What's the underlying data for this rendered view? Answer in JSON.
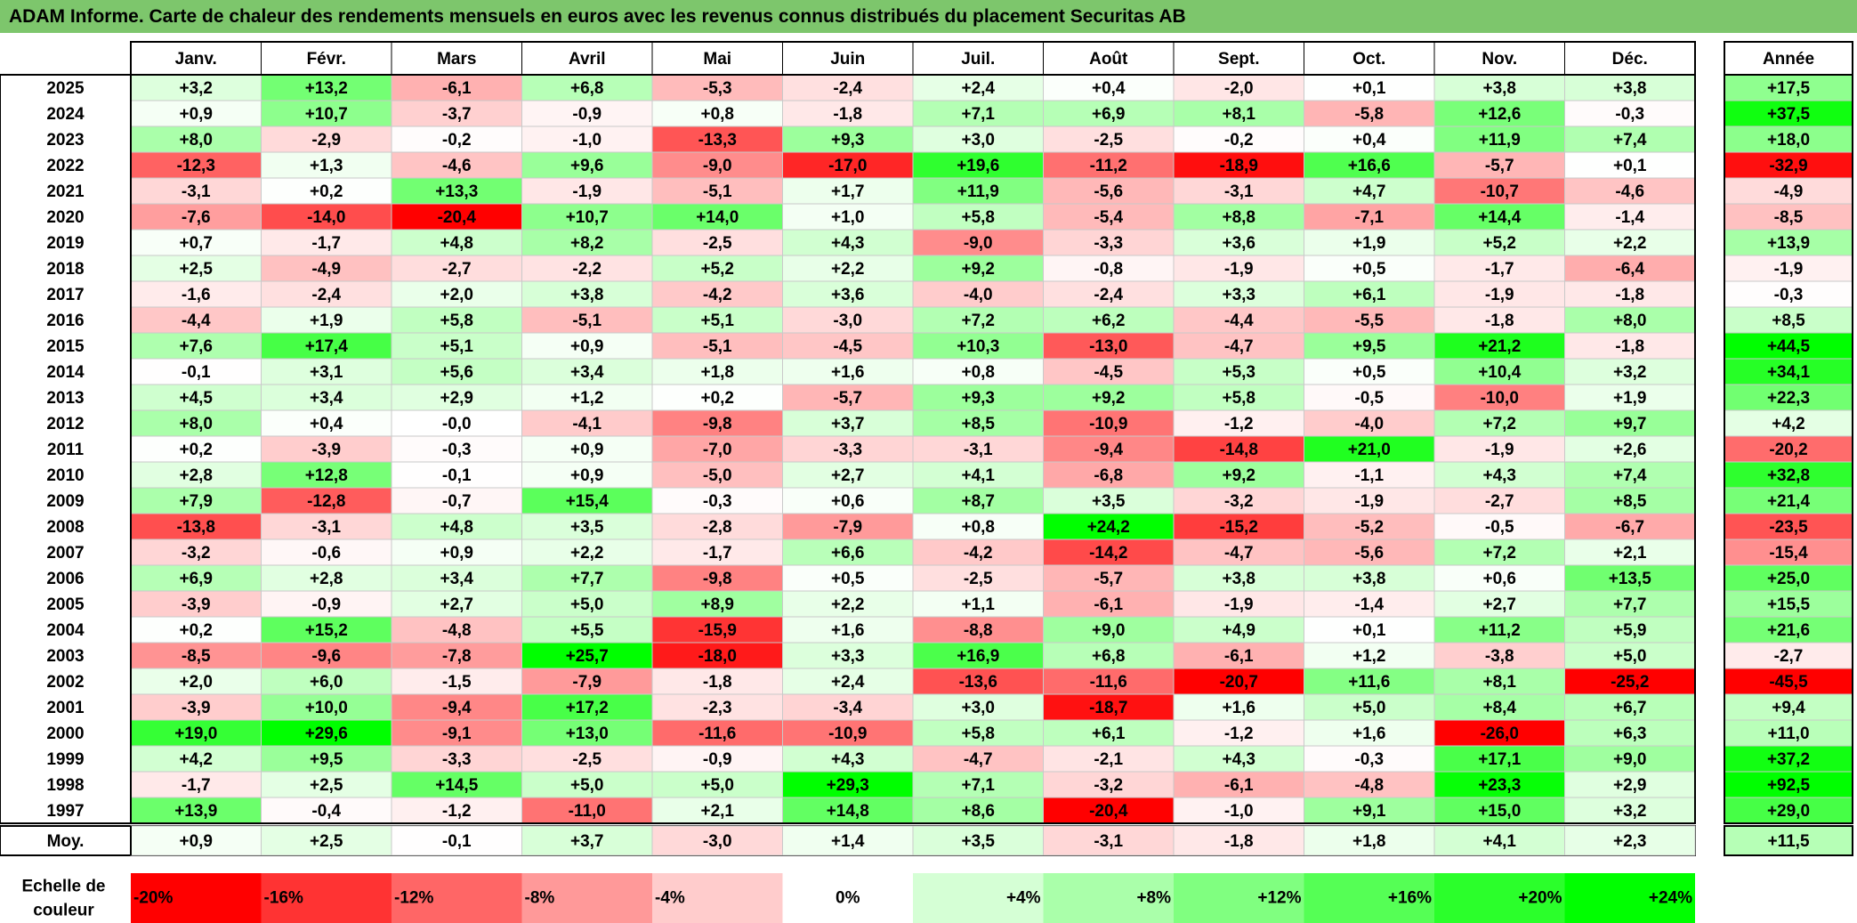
{
  "chart_data": {
    "type": "heatmap",
    "title": "ADAM Informe. Carte de chaleur des rendements mensuels en euros avec les revenus connus distribués du placement Securitas AB",
    "columns": [
      "Janv.",
      "Févr.",
      "Mars",
      "Avril",
      "Mai",
      "Juin",
      "Juil.",
      "Août",
      "Sept.",
      "Oct.",
      "Nov.",
      "Déc."
    ],
    "year_header": "Année",
    "rows": [
      {
        "year": "2025",
        "values": [
          "+3,2",
          "+13,2",
          "-6,1",
          "+6,8",
          "-5,3",
          "-2,4",
          "+2,4",
          "+0,4",
          "-2,0",
          "+0,1",
          "+3,8",
          "+3,8"
        ],
        "annual": "+17,5"
      },
      {
        "year": "2024",
        "values": [
          "+0,9",
          "+10,7",
          "-3,7",
          "-0,9",
          "+0,8",
          "-1,8",
          "+7,1",
          "+6,9",
          "+8,1",
          "-5,8",
          "+12,6",
          "-0,3"
        ],
        "annual": "+37,5"
      },
      {
        "year": "2023",
        "values": [
          "+8,0",
          "-2,9",
          "-0,2",
          "-1,0",
          "-13,3",
          "+9,3",
          "+3,0",
          "-2,5",
          "-0,2",
          "+0,4",
          "+11,9",
          "+7,4"
        ],
        "annual": "+18,0"
      },
      {
        "year": "2022",
        "values": [
          "-12,3",
          "+1,3",
          "-4,6",
          "+9,6",
          "-9,0",
          "-17,0",
          "+19,6",
          "-11,2",
          "-18,9",
          "+16,6",
          "-5,7",
          "+0,1"
        ],
        "annual": "-32,9"
      },
      {
        "year": "2021",
        "values": [
          "-3,1",
          "+0,2",
          "+13,3",
          "-1,9",
          "-5,1",
          "+1,7",
          "+11,9",
          "-5,6",
          "-3,1",
          "+4,7",
          "-10,7",
          "-4,6"
        ],
        "annual": "-4,9"
      },
      {
        "year": "2020",
        "values": [
          "-7,6",
          "-14,0",
          "-20,4",
          "+10,7",
          "+14,0",
          "+1,0",
          "+5,8",
          "-5,4",
          "+8,8",
          "-7,1",
          "+14,4",
          "-1,4"
        ],
        "annual": "-8,5"
      },
      {
        "year": "2019",
        "values": [
          "+0,7",
          "-1,7",
          "+4,8",
          "+8,2",
          "-2,5",
          "+4,3",
          "-9,0",
          "-3,3",
          "+3,6",
          "+1,9",
          "+5,2",
          "+2,2"
        ],
        "annual": "+13,9"
      },
      {
        "year": "2018",
        "values": [
          "+2,5",
          "-4,9",
          "-2,7",
          "-2,2",
          "+5,2",
          "+2,2",
          "+9,2",
          "-0,8",
          "-1,9",
          "+0,5",
          "-1,7",
          "-6,4"
        ],
        "annual": "-1,9"
      },
      {
        "year": "2017",
        "values": [
          "-1,6",
          "-2,4",
          "+2,0",
          "+3,8",
          "-4,2",
          "+3,6",
          "-4,0",
          "-2,4",
          "+3,3",
          "+6,1",
          "-1,9",
          "-1,8"
        ],
        "annual": "-0,3"
      },
      {
        "year": "2016",
        "values": [
          "-4,4",
          "+1,9",
          "+5,8",
          "-5,1",
          "+5,1",
          "-3,0",
          "+7,2",
          "+6,2",
          "-4,4",
          "-5,5",
          "-1,8",
          "+8,0"
        ],
        "annual": "+8,5"
      },
      {
        "year": "2015",
        "values": [
          "+7,6",
          "+17,4",
          "+5,1",
          "+0,9",
          "-5,1",
          "-4,5",
          "+10,3",
          "-13,0",
          "-4,7",
          "+9,5",
          "+21,2",
          "-1,8"
        ],
        "annual": "+44,5"
      },
      {
        "year": "2014",
        "values": [
          "-0,1",
          "+3,1",
          "+5,6",
          "+3,4",
          "+1,8",
          "+1,6",
          "+0,8",
          "-4,5",
          "+5,3",
          "+0,5",
          "+10,4",
          "+3,2"
        ],
        "annual": "+34,1"
      },
      {
        "year": "2013",
        "values": [
          "+4,5",
          "+3,4",
          "+2,9",
          "+1,2",
          "+0,2",
          "-5,7",
          "+9,3",
          "+9,2",
          "+5,8",
          "-0,5",
          "-10,0",
          "+1,9"
        ],
        "annual": "+22,3"
      },
      {
        "year": "2012",
        "values": [
          "+8,0",
          "+0,4",
          "-0,0",
          "-4,1",
          "-9,8",
          "+3,7",
          "+8,5",
          "-10,9",
          "-1,2",
          "-4,0",
          "+7,2",
          "+9,7"
        ],
        "annual": "+4,2"
      },
      {
        "year": "2011",
        "values": [
          "+0,2",
          "-3,9",
          "-0,3",
          "+0,9",
          "-7,0",
          "-3,3",
          "-3,1",
          "-9,4",
          "-14,8",
          "+21,0",
          "-1,9",
          "+2,6"
        ],
        "annual": "-20,2"
      },
      {
        "year": "2010",
        "values": [
          "+2,8",
          "+12,8",
          "-0,1",
          "+0,9",
          "-5,0",
          "+2,7",
          "+4,1",
          "-6,8",
          "+9,2",
          "-1,1",
          "+4,3",
          "+7,4"
        ],
        "annual": "+32,8"
      },
      {
        "year": "2009",
        "values": [
          "+7,9",
          "-12,8",
          "-0,7",
          "+15,4",
          "-0,3",
          "+0,6",
          "+8,7",
          "+3,5",
          "-3,2",
          "-1,9",
          "-2,7",
          "+8,5"
        ],
        "annual": "+21,4"
      },
      {
        "year": "2008",
        "values": [
          "-13,8",
          "-3,1",
          "+4,8",
          "+3,5",
          "-2,8",
          "-7,9",
          "+0,8",
          "+24,2",
          "-15,2",
          "-5,2",
          "-0,5",
          "-6,7"
        ],
        "annual": "-23,5"
      },
      {
        "year": "2007",
        "values": [
          "-3,2",
          "-0,6",
          "+0,9",
          "+2,2",
          "-1,7",
          "+6,6",
          "-4,2",
          "-14,2",
          "-4,7",
          "-5,6",
          "+7,2",
          "+2,1"
        ],
        "annual": "-15,4"
      },
      {
        "year": "2006",
        "values": [
          "+6,9",
          "+2,8",
          "+3,4",
          "+7,7",
          "-9,8",
          "+0,5",
          "-2,5",
          "-5,7",
          "+3,8",
          "+3,8",
          "+0,6",
          "+13,5"
        ],
        "annual": "+25,0"
      },
      {
        "year": "2005",
        "values": [
          "-3,9",
          "-0,9",
          "+2,7",
          "+5,0",
          "+8,9",
          "+2,2",
          "+1,1",
          "-6,1",
          "-1,9",
          "-1,4",
          "+2,7",
          "+7,7"
        ],
        "annual": "+15,5"
      },
      {
        "year": "2004",
        "values": [
          "+0,2",
          "+15,2",
          "-4,8",
          "+5,5",
          "-15,9",
          "+1,6",
          "-8,8",
          "+9,0",
          "+4,9",
          "+0,1",
          "+11,2",
          "+5,9"
        ],
        "annual": "+21,6"
      },
      {
        "year": "2003",
        "values": [
          "-8,5",
          "-9,6",
          "-7,8",
          "+25,7",
          "-18,0",
          "+3,3",
          "+16,9",
          "+6,8",
          "-6,1",
          "+1,2",
          "-3,8",
          "+5,0"
        ],
        "annual": "-2,7"
      },
      {
        "year": "2002",
        "values": [
          "+2,0",
          "+6,0",
          "-1,5",
          "-7,9",
          "-1,8",
          "+2,4",
          "-13,6",
          "-11,6",
          "-20,7",
          "+11,6",
          "+8,1",
          "-25,2"
        ],
        "annual": "-45,5"
      },
      {
        "year": "2001",
        "values": [
          "-3,9",
          "+10,0",
          "-9,4",
          "+17,2",
          "-2,3",
          "-3,4",
          "+3,0",
          "-18,7",
          "+1,6",
          "+5,0",
          "+8,4",
          "+6,7"
        ],
        "annual": "+9,4"
      },
      {
        "year": "2000",
        "values": [
          "+19,0",
          "+29,6",
          "-9,1",
          "+13,0",
          "-11,6",
          "-10,9",
          "+5,8",
          "+6,1",
          "-1,2",
          "+1,6",
          "-26,0",
          "+6,3"
        ],
        "annual": "+11,0"
      },
      {
        "year": "1999",
        "values": [
          "+4,2",
          "+9,5",
          "-3,3",
          "-2,5",
          "-0,9",
          "+4,3",
          "-4,7",
          "-2,1",
          "+4,3",
          "-0,3",
          "+17,1",
          "+9,0"
        ],
        "annual": "+37,2"
      },
      {
        "year": "1998",
        "values": [
          "-1,7",
          "+2,5",
          "+14,5",
          "+5,0",
          "+5,0",
          "+29,3",
          "+7,1",
          "-3,2",
          "-6,1",
          "-4,8",
          "+23,3",
          "+2,9"
        ],
        "annual": "+92,5"
      },
      {
        "year": "1997",
        "values": [
          "+13,9",
          "-0,4",
          "-1,2",
          "-11,0",
          "+2,1",
          "+14,8",
          "+8,6",
          "-20,4",
          "-1,0",
          "+9,1",
          "+15,0",
          "+3,2"
        ],
        "annual": "+29,0"
      }
    ],
    "average": {
      "label": "Moy.",
      "values": [
        "+0,9",
        "+2,5",
        "-0,1",
        "+3,7",
        "-3,0",
        "+1,4",
        "+3,5",
        "-3,1",
        "-1,8",
        "+1,8",
        "+4,1",
        "+2,3"
      ],
      "annual": "+11,5"
    },
    "scale": {
      "label_line1": "Echelle de",
      "label_line2": "couleur",
      "items": [
        "-20%",
        "-16%",
        "-12%",
        "-8%",
        "-4%",
        "0%",
        "+4%",
        "+8%",
        "+12%",
        "+16%",
        "+20%",
        "+24%"
      ]
    },
    "colors": {
      "negative_max": "#ff0000",
      "neutral": "#ffffff",
      "positive_max": "#00ff00",
      "title_bar": "#7dc66c"
    }
  }
}
